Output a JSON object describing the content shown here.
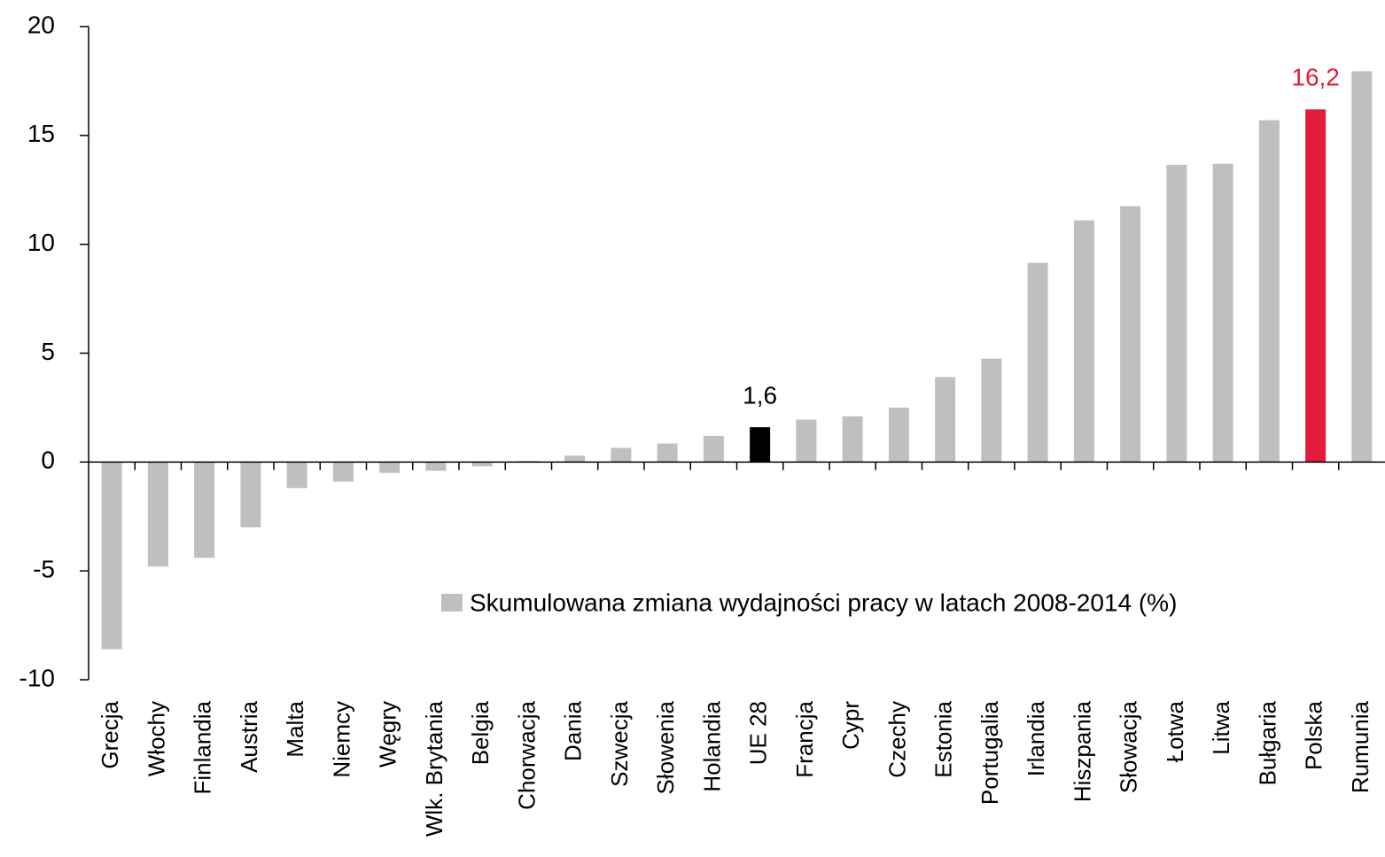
{
  "chart_data": {
    "type": "bar",
    "categories": [
      "Grecja",
      "Włochy",
      "Finlandia",
      "Austria",
      "Malta",
      "Niemcy",
      "Węgry",
      "Wlk. Brytania",
      "Belgia",
      "Chorwacja",
      "Dania",
      "Szwecja",
      "Słowenia",
      "Holandia",
      "UE 28",
      "Francja",
      "Cypr",
      "Czechy",
      "Estonia",
      "Portugalia",
      "Irlandia",
      "Hiszpania",
      "Słowacja",
      "Łotwa",
      "Litwa",
      "Bułgaria",
      "Polska",
      "Rumunia"
    ],
    "series": [
      {
        "name": "Skumulowana zmiana wydajności pracy w latach 2008-2014 (%)",
        "color": "#bfbfbf",
        "values": [
          -8.6,
          -4.8,
          -4.4,
          -3.0,
          -1.2,
          -0.9,
          -0.5,
          -0.4,
          -0.2,
          0.05,
          0.3,
          0.65,
          0.85,
          1.2,
          1.6,
          1.95,
          2.1,
          2.5,
          3.9,
          4.75,
          9.15,
          11.1,
          11.75,
          13.65,
          13.7,
          15.7,
          16.2,
          17.95
        ],
        "colors": [
          "#bfbfbf",
          "#bfbfbf",
          "#bfbfbf",
          "#bfbfbf",
          "#bfbfbf",
          "#bfbfbf",
          "#bfbfbf",
          "#bfbfbf",
          "#bfbfbf",
          "#bfbfbf",
          "#bfbfbf",
          "#bfbfbf",
          "#bfbfbf",
          "#bfbfbf",
          "#000000",
          "#bfbfbf",
          "#bfbfbf",
          "#bfbfbf",
          "#bfbfbf",
          "#bfbfbf",
          "#bfbfbf",
          "#bfbfbf",
          "#bfbfbf",
          "#bfbfbf",
          "#bfbfbf",
          "#bfbfbf",
          "#e31b3c",
          "#bfbfbf"
        ],
        "value_labels": [
          null,
          null,
          null,
          null,
          null,
          null,
          null,
          null,
          null,
          null,
          null,
          null,
          null,
          null,
          "1,6",
          null,
          null,
          null,
          null,
          null,
          null,
          null,
          null,
          null,
          null,
          null,
          "16,2",
          null
        ]
      }
    ],
    "ylim": [
      -10,
      20
    ],
    "yticks": [
      -10,
      -5,
      0,
      5,
      10,
      15,
      20
    ],
    "grid": false
  }
}
